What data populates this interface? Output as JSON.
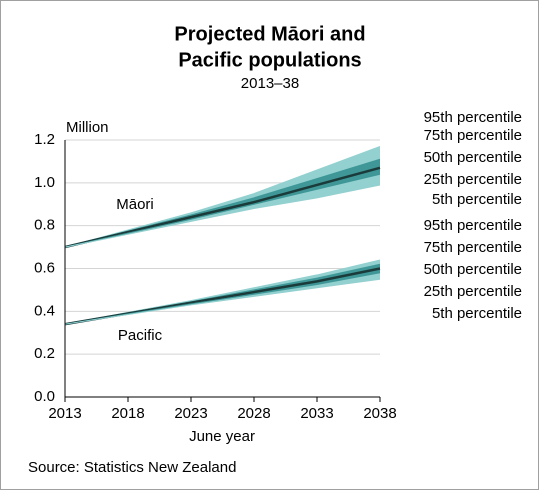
{
  "chart_data": {
    "type": "fan",
    "title": [
      "Projected Māori and",
      "Pacific populations"
    ],
    "subtitle": "2013–38",
    "y_label": "Million",
    "x_label": "June year",
    "source": "Source: Statistics New Zealand",
    "x": [
      2013,
      2018,
      2023,
      2028,
      2033,
      2038
    ],
    "xlim": [
      2013,
      2038
    ],
    "xticks": [
      2013,
      2018,
      2023,
      2028,
      2033,
      2038
    ],
    "ylim": [
      0,
      1.2
    ],
    "yticks": [
      {
        "value": 0,
        "label": "0.0"
      },
      0.2,
      0.4,
      0.6,
      0.8,
      {
        "value": 1,
        "label": "1.0"
      },
      1.2
    ],
    "grid": true,
    "groups": [
      {
        "label": "Māori",
        "series": [
          {
            "name": "95th percentile",
            "color": "#93d0d0",
            "values": [
              0.7,
              0.78,
              0.86,
              0.95,
              1.06,
              1.17
            ]
          },
          {
            "name": "75th percentile",
            "color": "#3f9797",
            "values": [
              0.7,
              0.775,
              0.85,
              0.93,
              1.02,
              1.11
            ]
          },
          {
            "name": "50th percentile",
            "color": "#1b3b3b",
            "values": [
              0.7,
              0.77,
              0.84,
              0.91,
              0.99,
              1.07
            ]
          },
          {
            "name": "25th percentile",
            "color": "#3f9797",
            "values": [
              0.7,
              0.765,
              0.83,
              0.9,
              0.97,
              1.04
            ]
          },
          {
            "name": "5th percentile",
            "color": "#93d0d0",
            "values": [
              0.7,
              0.76,
              0.82,
              0.88,
              0.93,
              0.99
            ]
          }
        ]
      },
      {
        "label": "Pacific",
        "series": [
          {
            "name": "95th percentile",
            "color": "#93d0d0",
            "values": [
              0.34,
              0.395,
              0.45,
              0.51,
              0.57,
              0.64
            ]
          },
          {
            "name": "75th percentile",
            "color": "#3f9797",
            "values": [
              0.34,
              0.392,
              0.445,
              0.5,
              0.555,
              0.62
            ]
          },
          {
            "name": "50th percentile",
            "color": "#1b3b3b",
            "values": [
              0.34,
              0.39,
              0.44,
              0.49,
              0.54,
              0.6
            ]
          },
          {
            "name": "25th percentile",
            "color": "#3f9797",
            "values": [
              0.34,
              0.388,
              0.435,
              0.48,
              0.525,
              0.58
            ]
          },
          {
            "name": "5th percentile",
            "color": "#93d0d0",
            "values": [
              0.34,
              0.385,
              0.43,
              0.47,
              0.51,
              0.55
            ]
          }
        ]
      }
    ]
  }
}
